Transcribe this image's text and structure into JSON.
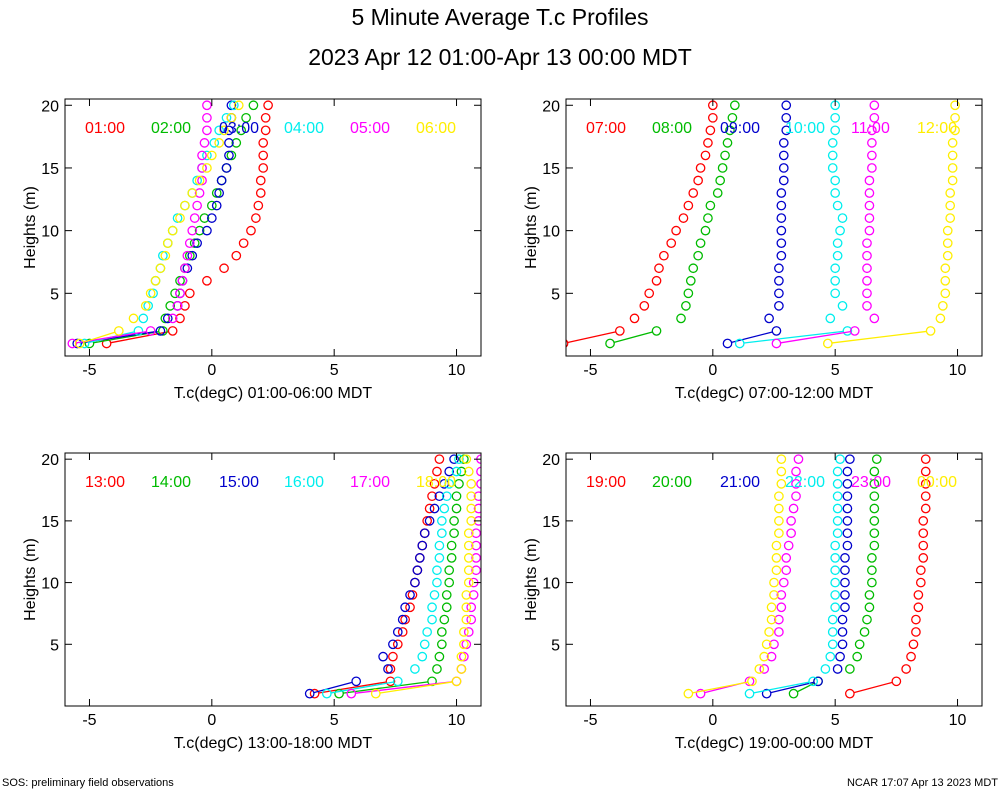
{
  "title": "5 Minute Average T.c Profiles",
  "subtitle": "2023 Apr 12 01:00-Apr 13 00:00 MDT",
  "footer_left": "SOS: preliminary field observations",
  "footer_right": "NCAR 17:07 Apr 13 2023 MDT",
  "chart_data": [
    {
      "type": "scatter",
      "xlabel": "T.c(degC) 01:00-06:00 MDT",
      "ylabel": "Heights (m)",
      "xlim": [
        -6,
        11
      ],
      "ylim": [
        0,
        20.5
      ],
      "xticks": [
        -5,
        0,
        5,
        10
      ],
      "yticks": [
        5,
        10,
        15,
        20
      ],
      "heights": [
        1,
        2,
        3,
        4,
        5,
        6,
        7,
        8,
        9,
        10,
        11,
        12,
        13,
        14,
        15,
        16,
        17,
        18,
        19,
        20
      ],
      "series": [
        {
          "name": "01:00",
          "color": "#ff0000",
          "x": [
            -4.3,
            -1.6,
            -1.3,
            -1.1,
            -0.9,
            -0.2,
            0.5,
            1.0,
            1.3,
            1.6,
            1.8,
            1.9,
            2.0,
            2.0,
            2.1,
            2.1,
            2.1,
            2.2,
            2.2,
            2.3
          ]
        },
        {
          "name": "02:00",
          "color": "#00bb00",
          "x": [
            -5.0,
            -2.0,
            -1.9,
            -1.7,
            -1.5,
            -1.3,
            -1.1,
            -0.9,
            -0.7,
            -0.5,
            -0.3,
            0.0,
            0.2,
            0.4,
            0.6,
            0.8,
            1.0,
            1.2,
            1.4,
            1.7
          ]
        },
        {
          "name": "03:00",
          "color": "#0000cc",
          "x": [
            -5.5,
            -2.1,
            -1.8,
            -1.4,
            -1.3,
            -1.2,
            -1.0,
            -0.8,
            -0.6,
            -0.2,
            0.0,
            0.2,
            0.3,
            0.4,
            0.6,
            0.7,
            0.7,
            0.7,
            0.8,
            0.8
          ]
        },
        {
          "name": "04:00",
          "color": "#00eeee",
          "x": [
            -5.2,
            -3.0,
            -2.8,
            -2.6,
            -2.4,
            -2.3,
            -2.1,
            -2.0,
            -1.8,
            -1.6,
            -1.4,
            -1.1,
            -0.8,
            -0.6,
            -0.4,
            -0.2,
            0.1,
            0.3,
            0.6,
            0.9
          ]
        },
        {
          "name": "05:00",
          "color": "#ff00ff",
          "x": [
            -5.7,
            -2.5,
            -1.6,
            -1.4,
            -1.3,
            -1.2,
            -1.1,
            -1.0,
            -0.9,
            -0.8,
            -0.7,
            -0.6,
            -0.5,
            -0.4,
            -0.4,
            -0.4,
            -0.3,
            -0.2,
            -0.2,
            -0.2
          ]
        },
        {
          "name": "06:00",
          "color": "#ffee00",
          "x": [
            -5.4,
            -3.8,
            -3.2,
            -2.7,
            -2.5,
            -2.3,
            -2.1,
            -1.9,
            -1.8,
            -1.6,
            -1.3,
            -1.1,
            -0.8,
            -0.5,
            -0.2,
            0.0,
            0.3,
            0.5,
            0.8,
            1.1
          ]
        }
      ]
    },
    {
      "type": "scatter",
      "xlabel": "T.c(degC) 07:00-12:00 MDT",
      "ylabel": "Heights (m)",
      "xlim": [
        -6,
        11
      ],
      "ylim": [
        0,
        20.5
      ],
      "xticks": [
        -5,
        0,
        5,
        10
      ],
      "yticks": [
        5,
        10,
        15,
        20
      ],
      "heights": [
        1,
        2,
        3,
        4,
        5,
        6,
        7,
        8,
        9,
        10,
        11,
        12,
        13,
        14,
        15,
        16,
        17,
        18,
        19,
        20
      ],
      "series": [
        {
          "name": "07:00",
          "color": "#ff0000",
          "x": [
            -6.1,
            -3.8,
            -3.2,
            -2.8,
            -2.6,
            -2.3,
            -2.2,
            -2.0,
            -1.7,
            -1.5,
            -1.2,
            -1.0,
            -0.8,
            -0.6,
            -0.5,
            -0.3,
            -0.2,
            -0.1,
            0.0,
            0.0
          ]
        },
        {
          "name": "08:00",
          "color": "#00bb00",
          "x": [
            -4.2,
            -2.3,
            -1.3,
            -1.1,
            -1.0,
            -0.9,
            -0.8,
            -0.6,
            -0.5,
            -0.3,
            -0.2,
            -0.1,
            0.2,
            0.3,
            0.4,
            0.5,
            0.6,
            0.7,
            0.8,
            0.9
          ]
        },
        {
          "name": "09:00",
          "color": "#0000cc",
          "x": [
            0.6,
            2.6,
            2.3,
            2.7,
            2.7,
            2.7,
            2.7,
            2.8,
            2.8,
            2.8,
            2.8,
            2.8,
            2.8,
            2.9,
            2.9,
            2.9,
            2.9,
            3.0,
            3.0,
            3.0
          ]
        },
        {
          "name": "10:00",
          "color": "#00eeee",
          "x": [
            1.1,
            5.5,
            4.8,
            5.3,
            5.0,
            5.0,
            5.0,
            5.1,
            5.1,
            5.2,
            5.3,
            5.1,
            5.0,
            5.0,
            4.9,
            4.9,
            4.9,
            5.0,
            5.0,
            5.0
          ]
        },
        {
          "name": "11:00",
          "color": "#ff00ff",
          "x": [
            2.6,
            5.8,
            6.6,
            6.3,
            6.3,
            6.3,
            6.3,
            6.3,
            6.3,
            6.4,
            6.4,
            6.4,
            6.4,
            6.4,
            6.5,
            6.5,
            6.5,
            6.5,
            6.6,
            6.6
          ]
        },
        {
          "name": "12:00",
          "color": "#ffee00",
          "x": [
            4.7,
            8.9,
            9.3,
            9.4,
            9.5,
            9.5,
            9.5,
            9.6,
            9.6,
            9.6,
            9.7,
            9.7,
            9.7,
            9.8,
            9.8,
            9.8,
            9.8,
            9.9,
            9.9,
            9.9
          ]
        }
      ]
    },
    {
      "type": "scatter",
      "xlabel": "T.c(degC) 13:00-18:00 MDT",
      "ylabel": "Heights (m)",
      "xlim": [
        -6,
        11
      ],
      "ylim": [
        0,
        20.5
      ],
      "xticks": [
        -5,
        0,
        5,
        10
      ],
      "yticks": [
        5,
        10,
        15,
        20
      ],
      "heights": [
        1,
        2,
        3,
        4,
        5,
        6,
        7,
        8,
        9,
        10,
        11,
        12,
        13,
        14,
        15,
        16,
        17,
        18,
        19,
        20
      ],
      "series": [
        {
          "name": "13:00",
          "color": "#ff0000",
          "x": [
            4.2,
            7.3,
            7.3,
            7.4,
            7.6,
            7.8,
            7.9,
            8.1,
            8.2,
            8.3,
            8.4,
            8.5,
            8.6,
            8.7,
            8.8,
            8.9,
            9.0,
            9.1,
            9.2,
            9.3
          ]
        },
        {
          "name": "14:00",
          "color": "#00bb00",
          "x": [
            5.2,
            9.0,
            9.2,
            9.3,
            9.4,
            9.4,
            9.5,
            9.6,
            9.6,
            9.7,
            9.7,
            9.8,
            9.8,
            9.9,
            9.9,
            10.0,
            10.0,
            10.1,
            10.2,
            10.3
          ]
        },
        {
          "name": "15:00",
          "color": "#0000cc",
          "x": [
            4.0,
            5.9,
            7.2,
            7.0,
            7.4,
            7.6,
            7.8,
            7.9,
            8.1,
            8.3,
            8.4,
            8.5,
            8.6,
            8.7,
            8.9,
            9.1,
            9.3,
            9.5,
            9.7,
            9.9
          ]
        },
        {
          "name": "16:00",
          "color": "#00eeee",
          "x": [
            4.7,
            7.6,
            8.3,
            8.6,
            8.7,
            8.8,
            9.0,
            9.0,
            9.1,
            9.2,
            9.2,
            9.3,
            9.3,
            9.4,
            9.4,
            9.5,
            9.6,
            9.7,
            10.0,
            10.1
          ]
        },
        {
          "name": "17:00",
          "color": "#ff00ff",
          "x": [
            5.7,
            10.0,
            10.2,
            10.3,
            10.4,
            10.5,
            10.6,
            10.6,
            10.7,
            10.7,
            10.8,
            10.8,
            10.8,
            10.8,
            10.9,
            10.9,
            10.9,
            11.0,
            11.0,
            11.0
          ]
        },
        {
          "name": "18:00",
          "color": "#ffee00",
          "x": [
            6.7,
            10.0,
            10.2,
            10.2,
            10.3,
            10.3,
            10.4,
            10.4,
            10.4,
            10.5,
            10.5,
            10.5,
            10.5,
            10.5,
            10.6,
            10.6,
            10.6,
            10.6,
            10.5,
            10.4
          ]
        }
      ]
    },
    {
      "type": "scatter",
      "xlabel": "T.c(degC) 19:00-00:00 MDT",
      "ylabel": "Heights (m)",
      "xlim": [
        -6,
        11
      ],
      "ylim": [
        0,
        20.5
      ],
      "xticks": [
        -5,
        0,
        5,
        10
      ],
      "yticks": [
        5,
        10,
        15,
        20
      ],
      "heights": [
        1,
        2,
        3,
        4,
        5,
        6,
        7,
        8,
        9,
        10,
        11,
        12,
        13,
        14,
        15,
        16,
        17,
        18,
        19,
        20
      ],
      "series": [
        {
          "name": "19:00",
          "color": "#ff0000",
          "x": [
            5.6,
            7.5,
            7.9,
            8.1,
            8.2,
            8.3,
            8.3,
            8.4,
            8.4,
            8.5,
            8.5,
            8.6,
            8.6,
            8.6,
            8.6,
            8.7,
            8.7,
            8.7,
            8.7,
            8.7
          ]
        },
        {
          "name": "20:00",
          "color": "#00bb00",
          "x": [
            3.3,
            4.3,
            5.6,
            5.9,
            6.0,
            6.2,
            6.3,
            6.4,
            6.4,
            6.5,
            6.5,
            6.5,
            6.6,
            6.6,
            6.6,
            6.6,
            6.6,
            6.6,
            6.6,
            6.7
          ]
        },
        {
          "name": "21:00",
          "color": "#0000cc",
          "x": [
            2.2,
            4.3,
            5.1,
            5.2,
            5.3,
            5.3,
            5.3,
            5.4,
            5.4,
            5.4,
            5.4,
            5.4,
            5.5,
            5.5,
            5.5,
            5.5,
            5.5,
            5.5,
            5.5,
            5.6
          ]
        },
        {
          "name": "22:00",
          "color": "#00eeee",
          "x": [
            1.5,
            4.1,
            4.6,
            4.8,
            4.9,
            4.9,
            4.9,
            5.0,
            5.0,
            5.0,
            5.0,
            5.0,
            5.0,
            5.1,
            5.1,
            5.1,
            5.1,
            5.1,
            5.1,
            5.2
          ]
        },
        {
          "name": "23:00",
          "color": "#ff00ff",
          "x": [
            -0.5,
            1.5,
            2.1,
            2.4,
            2.5,
            2.7,
            2.7,
            2.8,
            2.8,
            2.9,
            3.0,
            3.0,
            3.1,
            3.2,
            3.2,
            3.3,
            3.4,
            3.4,
            3.4,
            3.5
          ]
        },
        {
          "name": "00:00",
          "color": "#ffee00",
          "x": [
            -1.0,
            1.6,
            1.9,
            2.1,
            2.2,
            2.3,
            2.4,
            2.4,
            2.5,
            2.5,
            2.6,
            2.6,
            2.6,
            2.7,
            2.7,
            2.7,
            2.7,
            2.8,
            2.8,
            2.8
          ]
        }
      ]
    }
  ]
}
